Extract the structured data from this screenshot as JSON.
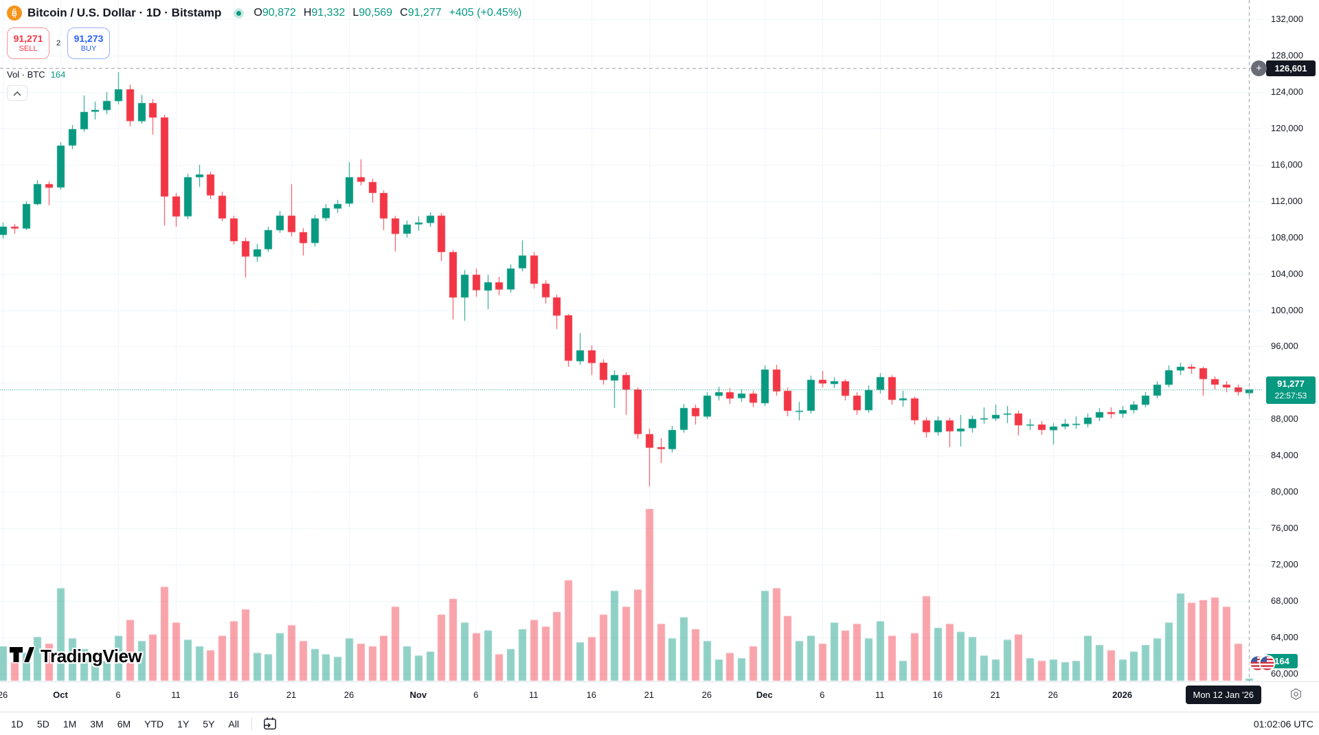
{
  "header": {
    "symbol_title": "Bitcoin / U.S. Dollar · 1D · Bitstamp",
    "ohlc": {
      "o_label": "O",
      "o": "90,872",
      "h_label": "H",
      "h": "91,332",
      "l_label": "L",
      "l": "90,569",
      "c_label": "C",
      "c": "91,277",
      "change": "+405 (+0.45%)"
    },
    "sell_button": {
      "price": "91,271",
      "label": "SELL"
    },
    "buy_button": {
      "price": "91,273",
      "label": "BUY"
    },
    "spread": "2",
    "volume_row": {
      "label": "Vol · BTC",
      "value": "164"
    }
  },
  "price_axis": {
    "labels": [
      "132,000",
      "128,000",
      "124,000",
      "120,000",
      "116,000",
      "112,000",
      "108,000",
      "104,000",
      "100,000",
      "96,000",
      "92,000",
      "88,000",
      "84,000",
      "80,000",
      "76,000",
      "72,000",
      "68,000",
      "64,000",
      "60,000"
    ],
    "crosshair_badge": "126,601",
    "price_badge": {
      "price": "91,277",
      "countdown": "22:57:53"
    },
    "volume_badge": "164"
  },
  "time_axis": {
    "ticks": [
      {
        "label": "26",
        "day": 0
      },
      {
        "label": "Oct",
        "day": 5,
        "bold": true
      },
      {
        "label": "6",
        "day": 10
      },
      {
        "label": "11",
        "day": 15
      },
      {
        "label": "16",
        "day": 20
      },
      {
        "label": "21",
        "day": 25
      },
      {
        "label": "26",
        "day": 30
      },
      {
        "label": "Nov",
        "day": 36,
        "bold": true
      },
      {
        "label": "6",
        "day": 41
      },
      {
        "label": "11",
        "day": 46
      },
      {
        "label": "16",
        "day": 51
      },
      {
        "label": "21",
        "day": 56
      },
      {
        "label": "26",
        "day": 61
      },
      {
        "label": "Dec",
        "day": 66,
        "bold": true
      },
      {
        "label": "6",
        "day": 71
      },
      {
        "label": "11",
        "day": 76
      },
      {
        "label": "16",
        "day": 81
      },
      {
        "label": "21",
        "day": 86
      },
      {
        "label": "26",
        "day": 91
      },
      {
        "label": "2026",
        "day": 97,
        "bold": true
      }
    ],
    "tooltip": "Mon 12 Jan '26"
  },
  "toolbar": {
    "ranges": [
      "1D",
      "5D",
      "1M",
      "3M",
      "6M",
      "YTD",
      "1Y",
      "5Y",
      "All"
    ],
    "clock": "01:02:06 UTC"
  },
  "logo": {
    "text": "TradingView"
  },
  "colors": {
    "up": "#089981",
    "down": "#f23645",
    "vol_up": "rgba(8,153,129,0.45)",
    "vol_down": "rgba(242,54,69,0.45)",
    "grid": "#f0f3fa",
    "crosshair": "#9598a1",
    "axis_border": "#e0e3eb",
    "sell_accent": "#f23645",
    "buy_accent": "#2962ff",
    "bitcoin_orange": "#f7931a"
  },
  "chart_data": {
    "type": "candlestick",
    "title": "Bitcoin / U.S. Dollar",
    "exchange": "Bitstamp",
    "interval": "1D",
    "start_date": "2025-09-26",
    "end_date": "2026-01-12",
    "ylim": [
      59000,
      133000
    ],
    "price_axis_ticks": [
      132000,
      128000,
      124000,
      120000,
      116000,
      112000,
      108000,
      104000,
      100000,
      96000,
      92000,
      88000,
      84000,
      80000,
      76000,
      72000,
      68000,
      64000,
      60000
    ],
    "current_price": 91277,
    "current_volume_btc": 164,
    "bar_countdown": "22:57:53",
    "crosshair": {
      "price": 126601,
      "date_label": "Mon 12 Jan '26"
    },
    "candles_format": [
      "open",
      "high",
      "low",
      "close",
      "volume_btc"
    ],
    "candles": [
      [
        108300,
        109600,
        107900,
        109200,
        2600
      ],
      [
        109200,
        109500,
        108400,
        109000,
        1400
      ],
      [
        109000,
        112000,
        108800,
        111700,
        2100
      ],
      [
        111700,
        114300,
        111500,
        113900,
        3300
      ],
      [
        113900,
        114200,
        111500,
        113500,
        2800
      ],
      [
        113500,
        118500,
        113300,
        118100,
        7000
      ],
      [
        118100,
        120400,
        117700,
        119900,
        3200
      ],
      [
        119900,
        123600,
        119600,
        121800,
        2400
      ],
      [
        121800,
        122900,
        121000,
        122000,
        1700
      ],
      [
        122000,
        124000,
        121600,
        123000,
        1500
      ],
      [
        123000,
        126200,
        122600,
        124300,
        3400
      ],
      [
        124300,
        124800,
        120200,
        120800,
        4600
      ],
      [
        120800,
        123700,
        120500,
        122800,
        3000
      ],
      [
        122800,
        123200,
        119300,
        121200,
        3500
      ],
      [
        121200,
        121500,
        109300,
        112500,
        7100
      ],
      [
        112500,
        112900,
        109200,
        110300,
        4400
      ],
      [
        110300,
        115000,
        110000,
        114600,
        3100
      ],
      [
        114600,
        116000,
        113600,
        114900,
        2600
      ],
      [
        114900,
        115200,
        112200,
        112600,
        2300
      ],
      [
        112600,
        113000,
        109800,
        110100,
        3400
      ],
      [
        110100,
        110400,
        107200,
        107600,
        4500
      ],
      [
        107600,
        108000,
        103600,
        105900,
        5400
      ],
      [
        105900,
        107300,
        105300,
        106700,
        2100
      ],
      [
        106700,
        109200,
        106400,
        108800,
        2000
      ],
      [
        108800,
        110900,
        108500,
        110400,
        3600
      ],
      [
        110400,
        113900,
        108100,
        108600,
        4200
      ],
      [
        108600,
        109000,
        106000,
        107400,
        3000
      ],
      [
        107400,
        110500,
        107000,
        110100,
        2400
      ],
      [
        110100,
        111700,
        109800,
        111200,
        2000
      ],
      [
        111200,
        112100,
        110700,
        111700,
        1800
      ],
      [
        111700,
        116300,
        111400,
        114600,
        3200
      ],
      [
        114600,
        116600,
        113700,
        114100,
        2800
      ],
      [
        114100,
        114500,
        111800,
        112900,
        2600
      ],
      [
        112900,
        113200,
        108800,
        110100,
        3400
      ],
      [
        110100,
        110400,
        106500,
        108400,
        5600
      ],
      [
        108400,
        109900,
        108000,
        109400,
        2600
      ],
      [
        109400,
        110300,
        108700,
        109600,
        1900
      ],
      [
        109600,
        110800,
        109200,
        110400,
        2200
      ],
      [
        110400,
        110700,
        105400,
        106400,
        5000
      ],
      [
        106400,
        106600,
        99000,
        101400,
        6200
      ],
      [
        101400,
        104400,
        98800,
        103900,
        4400
      ],
      [
        103900,
        104600,
        101500,
        102200,
        3600
      ],
      [
        102200,
        103900,
        100100,
        103100,
        3800
      ],
      [
        103100,
        103700,
        101600,
        102300,
        2000
      ],
      [
        102300,
        105000,
        101900,
        104600,
        2400
      ],
      [
        104600,
        107700,
        104300,
        106000,
        3900
      ],
      [
        106000,
        106400,
        102400,
        102900,
        4600
      ],
      [
        102900,
        103300,
        100700,
        101400,
        4100
      ],
      [
        101400,
        101700,
        97900,
        99400,
        5200
      ],
      [
        99400,
        99600,
        93800,
        94400,
        7600
      ],
      [
        94400,
        97500,
        94000,
        95600,
        2900
      ],
      [
        95600,
        96100,
        92900,
        94200,
        3300
      ],
      [
        94200,
        94600,
        91800,
        92300,
        5000
      ],
      [
        92300,
        93400,
        89200,
        92900,
        6800
      ],
      [
        92900,
        93200,
        88500,
        91300,
        5600
      ],
      [
        91300,
        91500,
        85800,
        86400,
        6900
      ],
      [
        86400,
        87000,
        80600,
        84900,
        13000
      ],
      [
        84900,
        85900,
        83200,
        84700,
        4300
      ],
      [
        84700,
        87300,
        84300,
        86800,
        3200
      ],
      [
        86800,
        89700,
        86500,
        89200,
        4800
      ],
      [
        89200,
        89600,
        87400,
        88300,
        3900
      ],
      [
        88300,
        91000,
        88000,
        90600,
        3000
      ],
      [
        90600,
        91600,
        90100,
        91000,
        1600
      ],
      [
        91000,
        91400,
        89700,
        90300,
        2100
      ],
      [
        90300,
        91300,
        89900,
        90800,
        1700
      ],
      [
        90800,
        91100,
        89300,
        89800,
        2600
      ],
      [
        89800,
        93900,
        89500,
        93500,
        6800
      ],
      [
        93500,
        94000,
        90600,
        91100,
        7000
      ],
      [
        91100,
        91500,
        88300,
        88900,
        4900
      ],
      [
        88900,
        89900,
        87900,
        88900,
        3000
      ],
      [
        88900,
        92800,
        88600,
        92300,
        3400
      ],
      [
        92300,
        93300,
        91500,
        91900,
        2800
      ],
      [
        91900,
        92600,
        91400,
        92200,
        4400
      ],
      [
        92200,
        92400,
        90100,
        90600,
        3800
      ],
      [
        90600,
        91000,
        88500,
        89000,
        4300
      ],
      [
        89000,
        91700,
        88700,
        91200,
        3200
      ],
      [
        91200,
        93100,
        90800,
        92600,
        4500
      ],
      [
        92600,
        92900,
        89600,
        90100,
        3400
      ],
      [
        90100,
        91100,
        89400,
        90300,
        1500
      ],
      [
        90300,
        90500,
        87400,
        87900,
        3600
      ],
      [
        87900,
        88200,
        86000,
        86600,
        6400
      ],
      [
        86600,
        88300,
        86200,
        87900,
        4000
      ],
      [
        87900,
        88200,
        84900,
        86700,
        4300
      ],
      [
        86700,
        88500,
        85000,
        87000,
        3700
      ],
      [
        87000,
        88400,
        86500,
        88000,
        3300
      ],
      [
        88000,
        89300,
        87500,
        88100,
        1900
      ],
      [
        88100,
        89600,
        87800,
        88500,
        1600
      ],
      [
        88500,
        89500,
        87600,
        88600,
        3100
      ],
      [
        88600,
        88900,
        86200,
        87300,
        3500
      ],
      [
        87300,
        88000,
        86800,
        87400,
        1700
      ],
      [
        87400,
        87800,
        86300,
        86800,
        1500
      ],
      [
        86800,
        87600,
        85200,
        87200,
        1600
      ],
      [
        87200,
        88000,
        86900,
        87500,
        1400
      ],
      [
        87500,
        88300,
        87000,
        87500,
        1500
      ],
      [
        87500,
        88600,
        87100,
        88200,
        3400
      ],
      [
        88200,
        89200,
        87800,
        88800,
        2700
      ],
      [
        88800,
        89300,
        88100,
        88600,
        2300
      ],
      [
        88600,
        89500,
        88200,
        89000,
        1600
      ],
      [
        89000,
        90000,
        88600,
        89600,
        2200
      ],
      [
        89600,
        91000,
        89300,
        90600,
        2700
      ],
      [
        90600,
        92200,
        90300,
        91800,
        3200
      ],
      [
        91800,
        93900,
        91500,
        93400,
        4400
      ],
      [
        93400,
        94200,
        92900,
        93800,
        6600
      ],
      [
        93800,
        94100,
        93000,
        93600,
        5900
      ],
      [
        93600,
        93800,
        90600,
        92400,
        6100
      ],
      [
        92400,
        92700,
        91300,
        91800,
        6300
      ],
      [
        91800,
        92200,
        91000,
        91500,
        5600
      ],
      [
        91500,
        91800,
        90600,
        91000,
        2800
      ],
      [
        90872,
        91332,
        90569,
        91277,
        164
      ]
    ]
  }
}
